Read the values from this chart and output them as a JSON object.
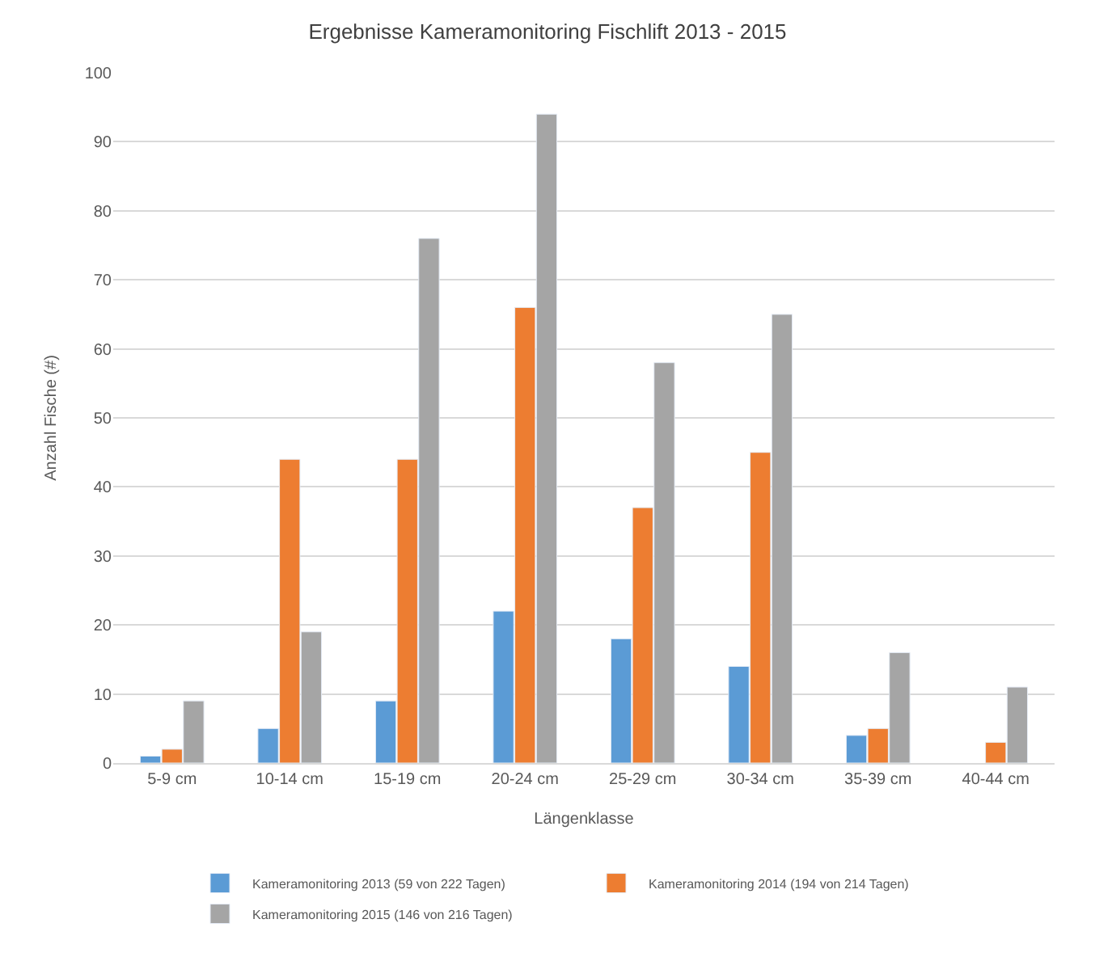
{
  "chart_data": {
    "type": "bar",
    "title": "Ergebnisse Kameramonitoring Fischlift 2013 - 2015",
    "xlabel": "Längenklasse",
    "ylabel": "Anzahl Fische (#)",
    "categories": [
      "5-9 cm",
      "10-14 cm",
      "15-19 cm",
      "20-24 cm",
      "25-29 cm",
      "30-34 cm",
      "35-39 cm",
      "40-44 cm"
    ],
    "series": [
      {
        "name": "Kameramonitoring 2013 (59 von 222 Tagen)",
        "color": "#5b9bd5",
        "values": [
          1,
          5,
          9,
          22,
          18,
          14,
          4,
          null
        ]
      },
      {
        "name": "Kameramonitoring 2014 (194 von 214 Tagen)",
        "color": "#ed7d31",
        "values": [
          2,
          44,
          44,
          66,
          37,
          45,
          5,
          3
        ]
      },
      {
        "name": "Kameramonitoring 2015 (146 von 216 Tagen)",
        "color": "#a5a5a5",
        "values": [
          9,
          19,
          76,
          94,
          58,
          65,
          16,
          11
        ]
      }
    ],
    "ylim": [
      0,
      100
    ],
    "yticks": [
      0,
      10,
      20,
      30,
      40,
      50,
      60,
      70,
      80,
      90,
      100
    ],
    "grid": "y",
    "legend": "bottom"
  }
}
